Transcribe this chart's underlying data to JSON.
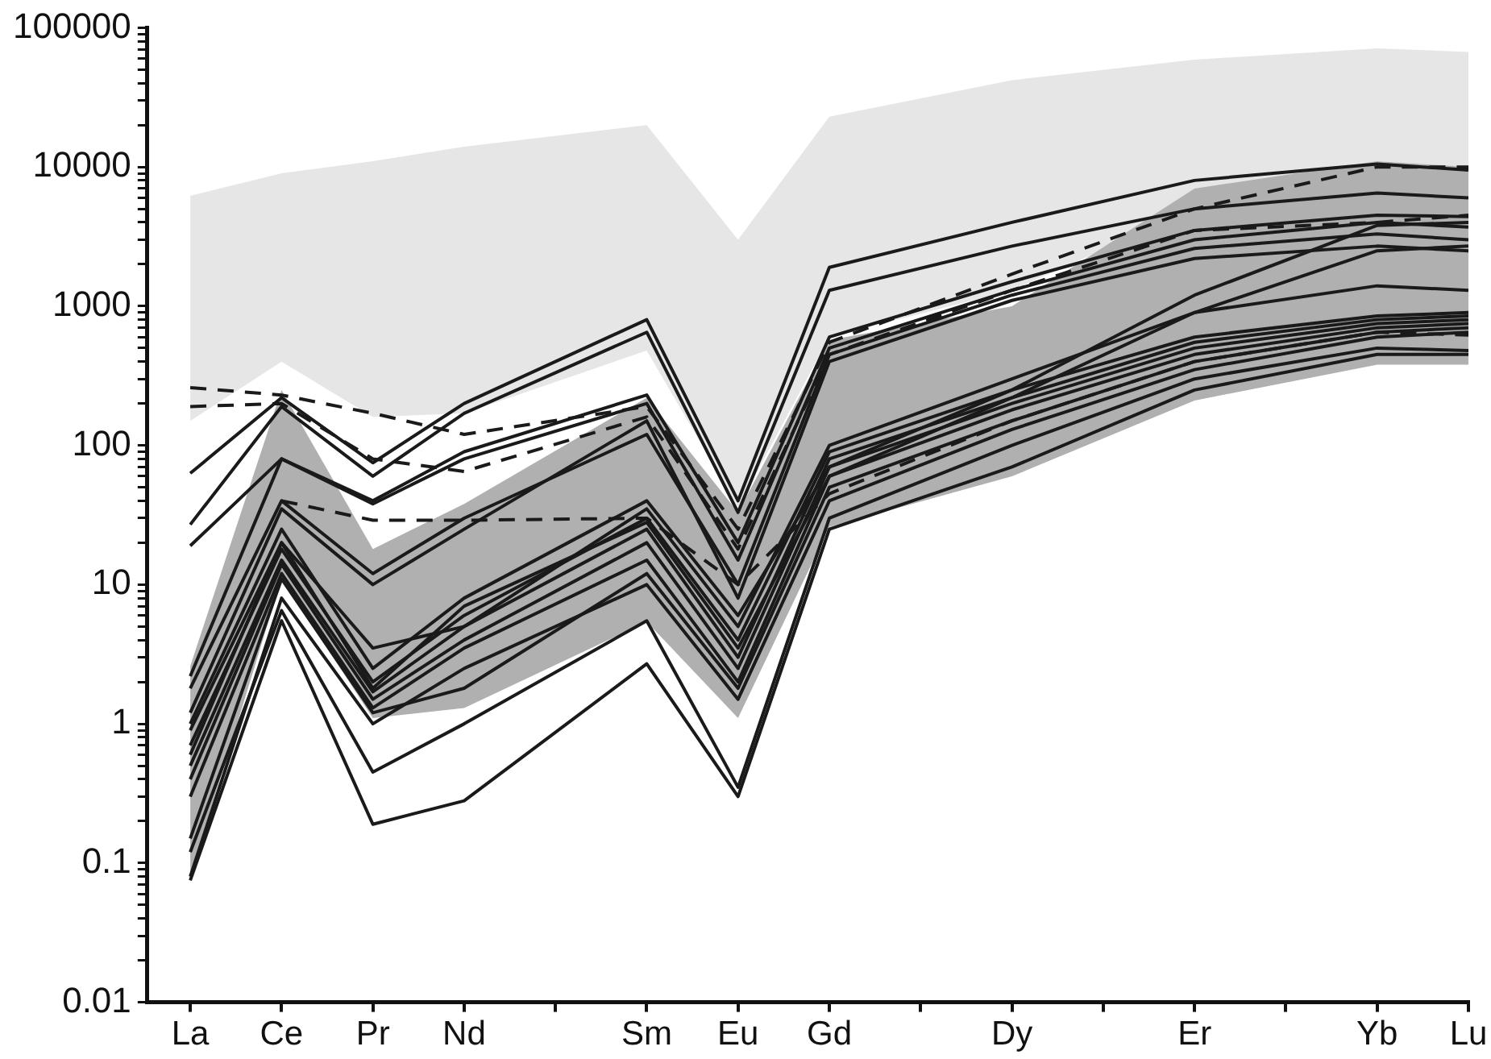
{
  "chart_data": {
    "type": "line",
    "log": "y",
    "categories": [
      "La",
      "Ce",
      "Pr",
      "Nd",
      null,
      "Sm",
      "Eu",
      "Gd",
      null,
      "Dy",
      null,
      "Er",
      null,
      "Yb",
      "Lu"
    ],
    "ylim": [
      0.01,
      100000
    ],
    "yticks": [
      0.01,
      {
        "value": 0.02,
        "label": null
      },
      {
        "value": 0.03,
        "label": null
      },
      {
        "value": 0.04,
        "label": null
      },
      {
        "value": 0.05,
        "label": null
      },
      {
        "value": 0.06,
        "label": null
      },
      {
        "value": 0.07,
        "label": null
      },
      {
        "value": 0.08,
        "label": null
      },
      {
        "value": 0.09,
        "label": null
      },
      0.1,
      {
        "value": 0.2,
        "label": null
      },
      {
        "value": 0.3,
        "label": null
      },
      {
        "value": 0.4,
        "label": null
      },
      {
        "value": 0.5,
        "label": null
      },
      {
        "value": 0.6,
        "label": null
      },
      {
        "value": 0.7,
        "label": null
      },
      {
        "value": 0.8,
        "label": null
      },
      {
        "value": 0.9,
        "label": null
      },
      1,
      {
        "value": 2,
        "label": null
      },
      {
        "value": 3,
        "label": null
      },
      {
        "value": 4,
        "label": null
      },
      {
        "value": 5,
        "label": null
      },
      {
        "value": 6,
        "label": null
      },
      {
        "value": 7,
        "label": null
      },
      {
        "value": 8,
        "label": null
      },
      {
        "value": 9,
        "label": null
      },
      10,
      {
        "value": 20,
        "label": null
      },
      {
        "value": 30,
        "label": null
      },
      {
        "value": 40,
        "label": null
      },
      {
        "value": 50,
        "label": null
      },
      {
        "value": 60,
        "label": null
      },
      {
        "value": 70,
        "label": null
      },
      {
        "value": 80,
        "label": null
      },
      {
        "value": 90,
        "label": null
      },
      100,
      {
        "value": 200,
        "label": null
      },
      {
        "value": 300,
        "label": null
      },
      {
        "value": 400,
        "label": null
      },
      {
        "value": 500,
        "label": null
      },
      {
        "value": 600,
        "label": null
      },
      {
        "value": 700,
        "label": null
      },
      {
        "value": 800,
        "label": null
      },
      {
        "value": 900,
        "label": null
      },
      1000,
      {
        "value": 2000,
        "label": null
      },
      {
        "value": 3000,
        "label": null
      },
      {
        "value": 4000,
        "label": null
      },
      {
        "value": 5000,
        "label": null
      },
      {
        "value": 6000,
        "label": null
      },
      {
        "value": 7000,
        "label": null
      },
      {
        "value": 8000,
        "label": null
      },
      {
        "value": 9000,
        "label": null
      },
      10000,
      {
        "value": 20000,
        "label": null
      },
      {
        "value": 30000,
        "label": null
      },
      {
        "value": 40000,
        "label": null
      },
      {
        "value": 50000,
        "label": null
      },
      {
        "value": 60000,
        "label": null
      },
      {
        "value": 70000,
        "label": null
      },
      {
        "value": 80000,
        "label": null
      },
      {
        "value": 90000,
        "label": null
      },
      100000
    ],
    "series": [
      {
        "color": "#e6e6e6",
        "values": [
          null,
          null,
          null,
          null,
          null,
          null,
          null,
          null,
          null,
          null,
          null,
          null,
          null,
          null,
          null
        ],
        "upper": [
          6200,
          9000,
          11000,
          14000,
          null,
          20000,
          3000,
          23000,
          null,
          42000,
          null,
          59000,
          null,
          71000,
          67000
        ],
        "lower": [
          150,
          400,
          160,
          170,
          null,
          480,
          36,
          600,
          null,
          1300,
          null,
          5000,
          null,
          11000,
          10000
        ]
      },
      {
        "color": "#b0b0b0",
        "values": [
          null,
          null,
          null,
          null,
          null,
          null,
          null,
          null,
          null,
          null,
          null,
          null,
          null,
          null,
          null
        ],
        "upper": [
          2.6,
          250,
          18,
          38,
          null,
          220,
          33,
          570,
          null,
          1000,
          null,
          7000,
          null,
          11000,
          10000
        ],
        "lower": [
          0.08,
          11,
          1.1,
          1.3,
          null,
          5.4,
          1.1,
          26,
          null,
          60,
          null,
          210,
          null,
          380,
          380
        ]
      },
      {
        "color": "#1a1a1a",
        "values": [
          63,
          220,
          75,
          200,
          null,
          800,
          40,
          1900,
          null,
          4000,
          null,
          8000,
          null,
          10500,
          9500
        ]
      },
      {
        "color": "#1a1a1a",
        "values": [
          27,
          190,
          60,
          170,
          null,
          650,
          33,
          1300,
          null,
          2700,
          null,
          5000,
          null,
          6500,
          6000
        ]
      },
      {
        "color": "#1a1a1a",
        "values": [
          19,
          80,
          40,
          90,
          null,
          230,
          20,
          600,
          null,
          1500,
          null,
          3500,
          null,
          4500,
          4400
        ]
      },
      {
        "color": "#1a1a1a",
        "values": [
          2.2,
          80,
          38,
          80,
          null,
          200,
          15,
          500,
          null,
          1300,
          null,
          3000,
          null,
          4000,
          3700
        ]
      },
      {
        "color": "#1a1a1a",
        "values": [
          1.8,
          40,
          12,
          30,
          null,
          120,
          10,
          450,
          null,
          1200,
          null,
          2600,
          null,
          3300,
          3000
        ]
      },
      {
        "color": "#1a1a1a",
        "values": [
          1.2,
          35,
          10,
          25,
          null,
          150,
          8,
          400,
          null,
          1100,
          null,
          2200,
          null,
          2700,
          2500
        ]
      },
      {
        "color": "#1a1a1a",
        "values": [
          0.9,
          20,
          3.5,
          5,
          null,
          35,
          5,
          100,
          null,
          300,
          null,
          900,
          null,
          1400,
          1300
        ]
      },
      {
        "color": "#1a1a1a",
        "values": [
          0.7,
          18,
          2,
          6,
          null,
          30,
          4,
          90,
          null,
          250,
          null,
          600,
          null,
          850,
          900
        ]
      },
      {
        "color": "#1a1a1a",
        "values": [
          0.5,
          15,
          1.7,
          5,
          null,
          25,
          3,
          80,
          null,
          220,
          null,
          550,
          null,
          800,
          850
        ]
      },
      {
        "color": "#1a1a1a",
        "values": [
          0.4,
          14,
          1.5,
          4,
          null,
          20,
          2.5,
          70,
          null,
          200,
          null,
          500,
          null,
          750,
          800
        ]
      },
      {
        "color": "#1a1a1a",
        "values": [
          0.3,
          12,
          1.3,
          3.5,
          null,
          15,
          2,
          60,
          null,
          180,
          null,
          450,
          null,
          700,
          750
        ]
      },
      {
        "color": "#1a1a1a",
        "values": [
          0.15,
          11,
          1.2,
          1.8,
          null,
          12,
          1.8,
          50,
          null,
          150,
          null,
          400,
          null,
          650,
          700
        ]
      },
      {
        "color": "#1a1a1a",
        "values": [
          0.08,
          8,
          1,
          2.5,
          null,
          10,
          1.5,
          40,
          null,
          130,
          null,
          350,
          null,
          600,
          650
        ]
      },
      {
        "color": "#1a1a1a",
        "values": [
          0.12,
          6.5,
          0.45,
          1,
          null,
          5.5,
          0.35,
          30,
          null,
          100,
          null,
          300,
          null,
          500,
          480
        ]
      },
      {
        "color": "#1a1a1a",
        "values": [
          0.075,
          5.5,
          0.19,
          0.28,
          null,
          2.7,
          0.3,
          25,
          null,
          70,
          null,
          250,
          null,
          450,
          450
        ]
      },
      {
        "color": "#1a1a1a",
        "values": [
          1,
          25,
          2.5,
          8,
          null,
          40,
          6,
          70,
          null,
          250,
          null,
          1200,
          null,
          3800,
          4000
        ]
      },
      {
        "color": "#1a1a1a",
        "values": [
          0.6,
          20,
          1.8,
          7,
          null,
          28,
          3.5,
          60,
          null,
          220,
          null,
          900,
          null,
          2500,
          2700
        ]
      },
      {
        "color": "#1a1a1a",
        "line_style": "dashed",
        "values": [
          260,
          230,
          170,
          120,
          null,
          190,
          25,
          550,
          null,
          1700,
          null,
          5000,
          null,
          10000,
          10000
        ]
      },
      {
        "color": "#1a1a1a",
        "line_style": "dashed",
        "values": [
          190,
          200,
          80,
          65,
          null,
          160,
          18,
          450,
          null,
          1300,
          null,
          3500,
          null,
          4000,
          4500
        ]
      },
      {
        "color": "#1a1a1a",
        "line_style": "dashed",
        "values": [
          null,
          40,
          29,
          29,
          null,
          30,
          10,
          45,
          null,
          150,
          null,
          400,
          null,
          650,
          620
        ]
      }
    ]
  }
}
